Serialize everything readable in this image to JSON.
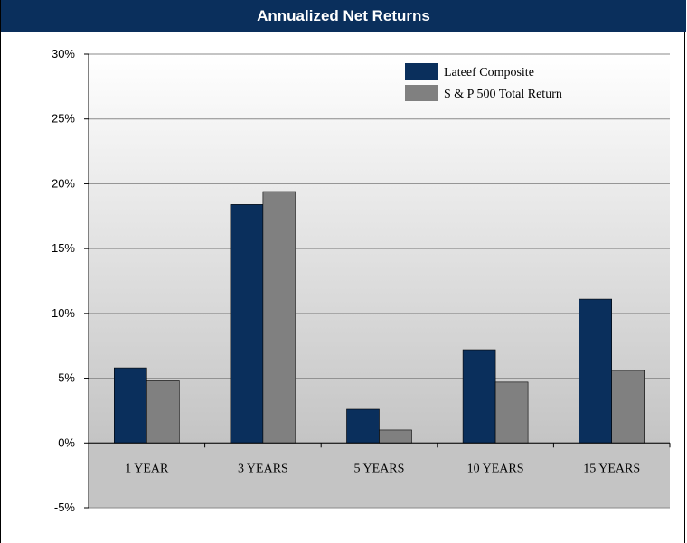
{
  "chart_data": {
    "type": "bar",
    "title": "Annualized Net Returns",
    "categories": [
      "1 YEAR",
      "3 YEARS",
      "5 YEARS",
      "10 YEARS",
      "15 YEARS"
    ],
    "series": [
      {
        "name": "Lateef Composite",
        "values": [
          5.8,
          18.4,
          2.6,
          7.2,
          11.1
        ],
        "color": "#0a2f5c"
      },
      {
        "name": "S & P 500 Total Return",
        "values": [
          4.8,
          19.4,
          1.0,
          4.7,
          5.6
        ],
        "color": "#808080"
      }
    ],
    "ylim": [
      -5,
      30
    ],
    "yticks": [
      30,
      25,
      20,
      15,
      10,
      5,
      0,
      -5
    ],
    "ytick_labels": [
      "30%",
      "25%",
      "20%",
      "15%",
      "10%",
      "5%",
      "0%",
      "-5%"
    ],
    "grid": true,
    "legend": "top-right"
  }
}
